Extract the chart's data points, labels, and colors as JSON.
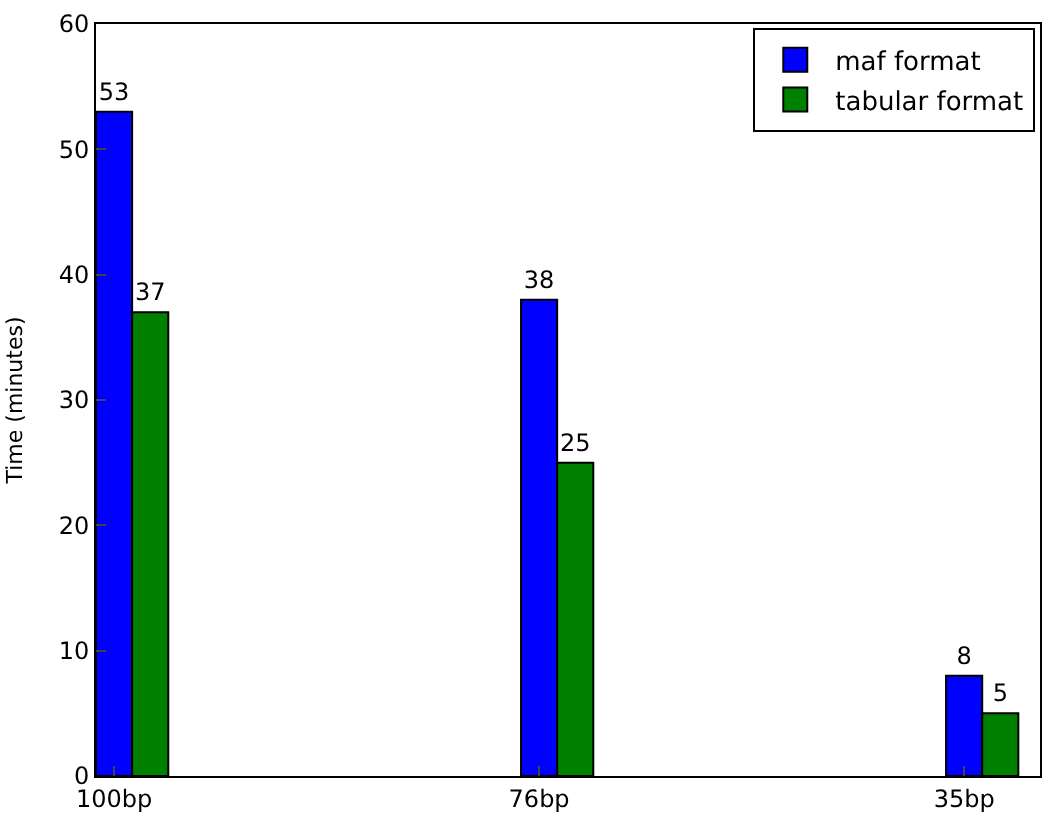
{
  "chart_data": {
    "type": "bar",
    "ylabel": "Time (minutes)",
    "categories": [
      "100bp",
      "76bp",
      "35bp"
    ],
    "series": [
      {
        "name": "maf format",
        "color": "#0000ff",
        "values": [
          53,
          38,
          8
        ]
      },
      {
        "name": "tabular format",
        "color": "#008000",
        "values": [
          37,
          25,
          5
        ]
      }
    ],
    "ylim": [
      0,
      60
    ],
    "yticks": [
      0,
      10,
      20,
      30,
      40,
      50,
      60
    ],
    "legend": "top right",
    "data_labels": true
  }
}
